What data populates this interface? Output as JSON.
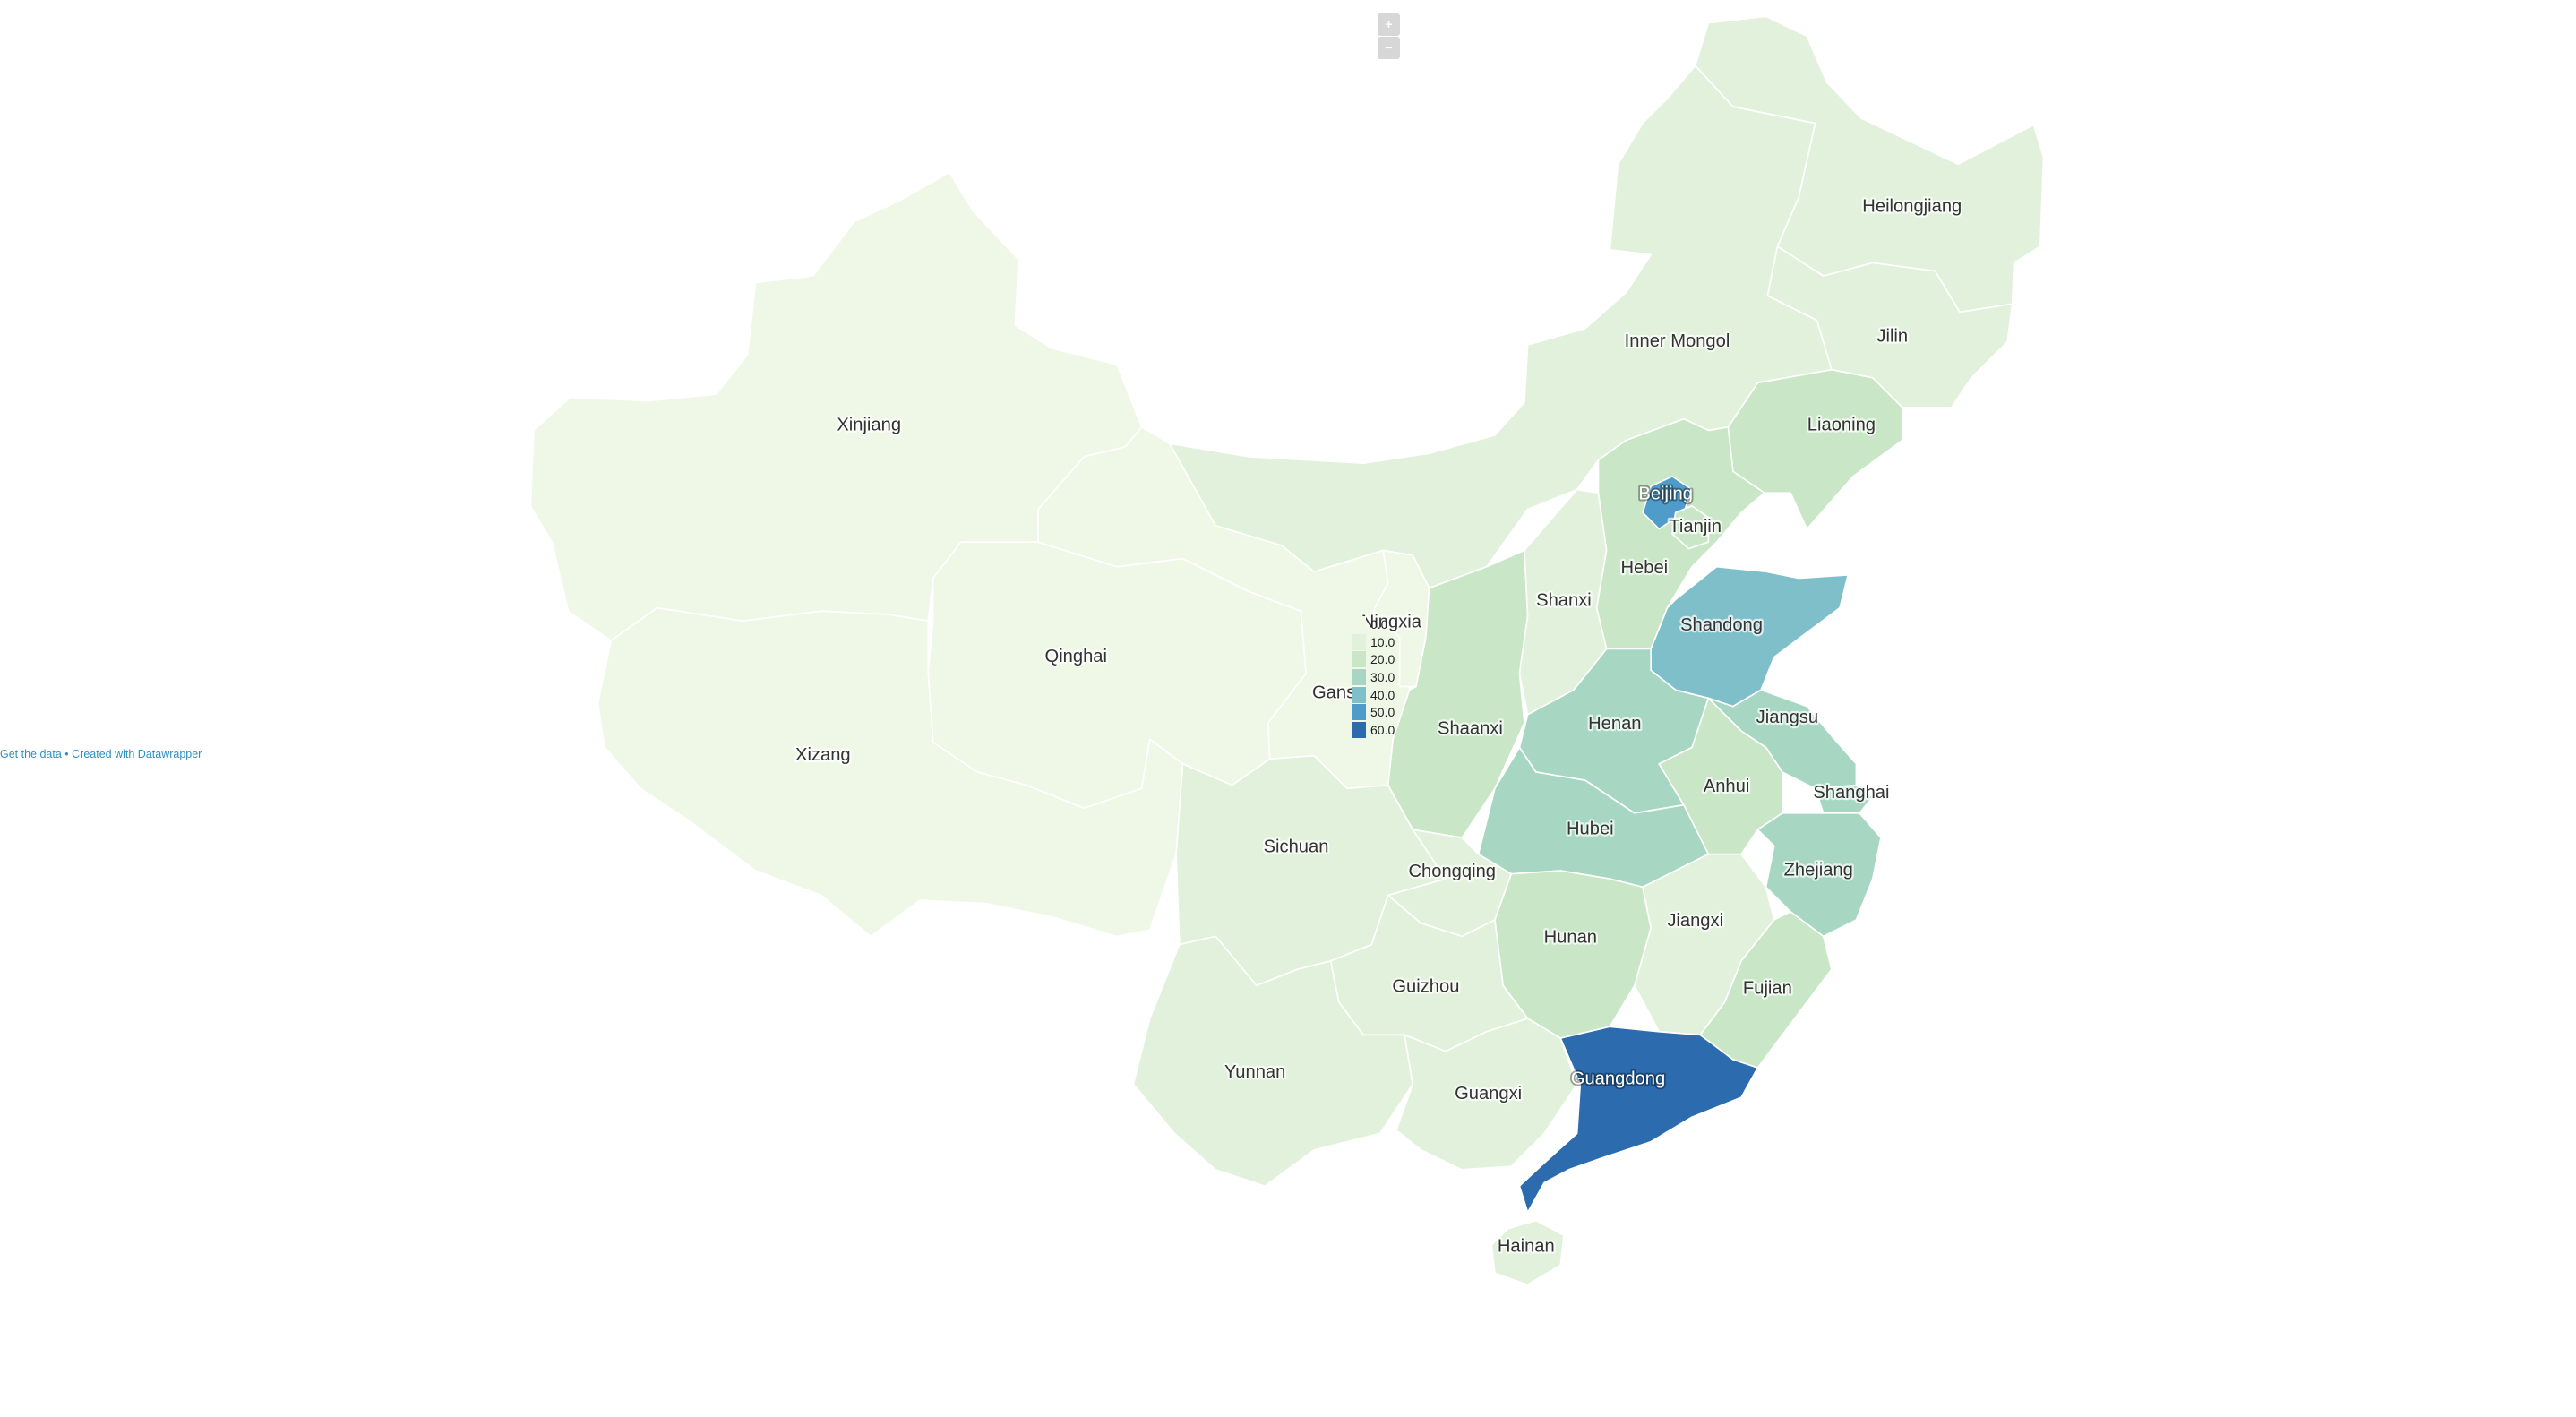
{
  "controls": {
    "zoom_in": "+",
    "zoom_out": "−"
  },
  "map_data": {
    "value_scale": [
      0.0,
      10.0,
      20.0,
      30.0,
      40.0,
      50.0,
      60.0
    ],
    "colors": [
      "#eff7e7",
      "#e2f1db",
      "#c9e6c6",
      "#a7d7c2",
      "#7fbfc9",
      "#4f9bc9",
      "#2b6bae"
    ],
    "provinces": [
      {
        "id": "heilongjiang",
        "name": "Heilongjiang",
        "bin": 1
      },
      {
        "id": "jilin",
        "name": "Jilin",
        "bin": 1
      },
      {
        "id": "liaoning",
        "name": "Liaoning",
        "bin": 2
      },
      {
        "id": "inner-mongol",
        "name": "Inner Mongol",
        "bin": 1
      },
      {
        "id": "xinjiang",
        "name": "Xinjiang",
        "bin": 0
      },
      {
        "id": "qinghai",
        "name": "Qinghai",
        "bin": 0
      },
      {
        "id": "xizang",
        "name": "Xizang",
        "bin": 0
      },
      {
        "id": "gansu",
        "name": "Gansu",
        "bin": 0
      },
      {
        "id": "ningxia",
        "name": "Ningxia",
        "bin": 0
      },
      {
        "id": "shaanxi",
        "name": "Shaanxi",
        "bin": 2
      },
      {
        "id": "shanxi",
        "name": "Shanxi",
        "bin": 1
      },
      {
        "id": "hebei",
        "name": "Hebei",
        "bin": 2
      },
      {
        "id": "beijing",
        "name": "Beijing",
        "bin": 5
      },
      {
        "id": "tianjin",
        "name": "Tianjin",
        "bin": 2
      },
      {
        "id": "shandong",
        "name": "Shandong",
        "bin": 4
      },
      {
        "id": "henan",
        "name": "Henan",
        "bin": 3
      },
      {
        "id": "jiangsu",
        "name": "Jiangsu",
        "bin": 3
      },
      {
        "id": "anhui",
        "name": "Anhui",
        "bin": 2
      },
      {
        "id": "shanghai",
        "name": "Shanghai",
        "bin": 3
      },
      {
        "id": "hubei",
        "name": "Hubei",
        "bin": 3
      },
      {
        "id": "zhejiang",
        "name": "Zhejiang",
        "bin": 3
      },
      {
        "id": "sichuan",
        "name": "Sichuan",
        "bin": 1
      },
      {
        "id": "chongqing",
        "name": "Chongqing",
        "bin": 1
      },
      {
        "id": "hunan",
        "name": "Hunan",
        "bin": 2
      },
      {
        "id": "jiangxi",
        "name": "Jiangxi",
        "bin": 1
      },
      {
        "id": "fujian",
        "name": "Fujian",
        "bin": 2
      },
      {
        "id": "guizhou",
        "name": "Guizhou",
        "bin": 1
      },
      {
        "id": "yunnan",
        "name": "Yunnan",
        "bin": 1
      },
      {
        "id": "guangxi",
        "name": "Guangxi",
        "bin": 1
      },
      {
        "id": "guangdong",
        "name": "Guangdong",
        "bin": 6
      },
      {
        "id": "hainan",
        "name": "Hainan",
        "bin": 1
      }
    ]
  },
  "legend": {
    "items": [
      {
        "label": "0.0",
        "color": "#eff7e7"
      },
      {
        "label": "10.0",
        "color": "#e2f1db"
      },
      {
        "label": "20.0",
        "color": "#c9e6c6"
      },
      {
        "label": "30.0",
        "color": "#a7d7c2"
      },
      {
        "label": "40.0",
        "color": "#7fbfc9"
      },
      {
        "label": "50.0",
        "color": "#4f9bc9"
      },
      {
        "label": "60.0",
        "color": "#2b6bae"
      }
    ]
  },
  "footer": {
    "get_data": "Get the data",
    "separator": " • ",
    "created_with": "Created with Datawrapper"
  }
}
